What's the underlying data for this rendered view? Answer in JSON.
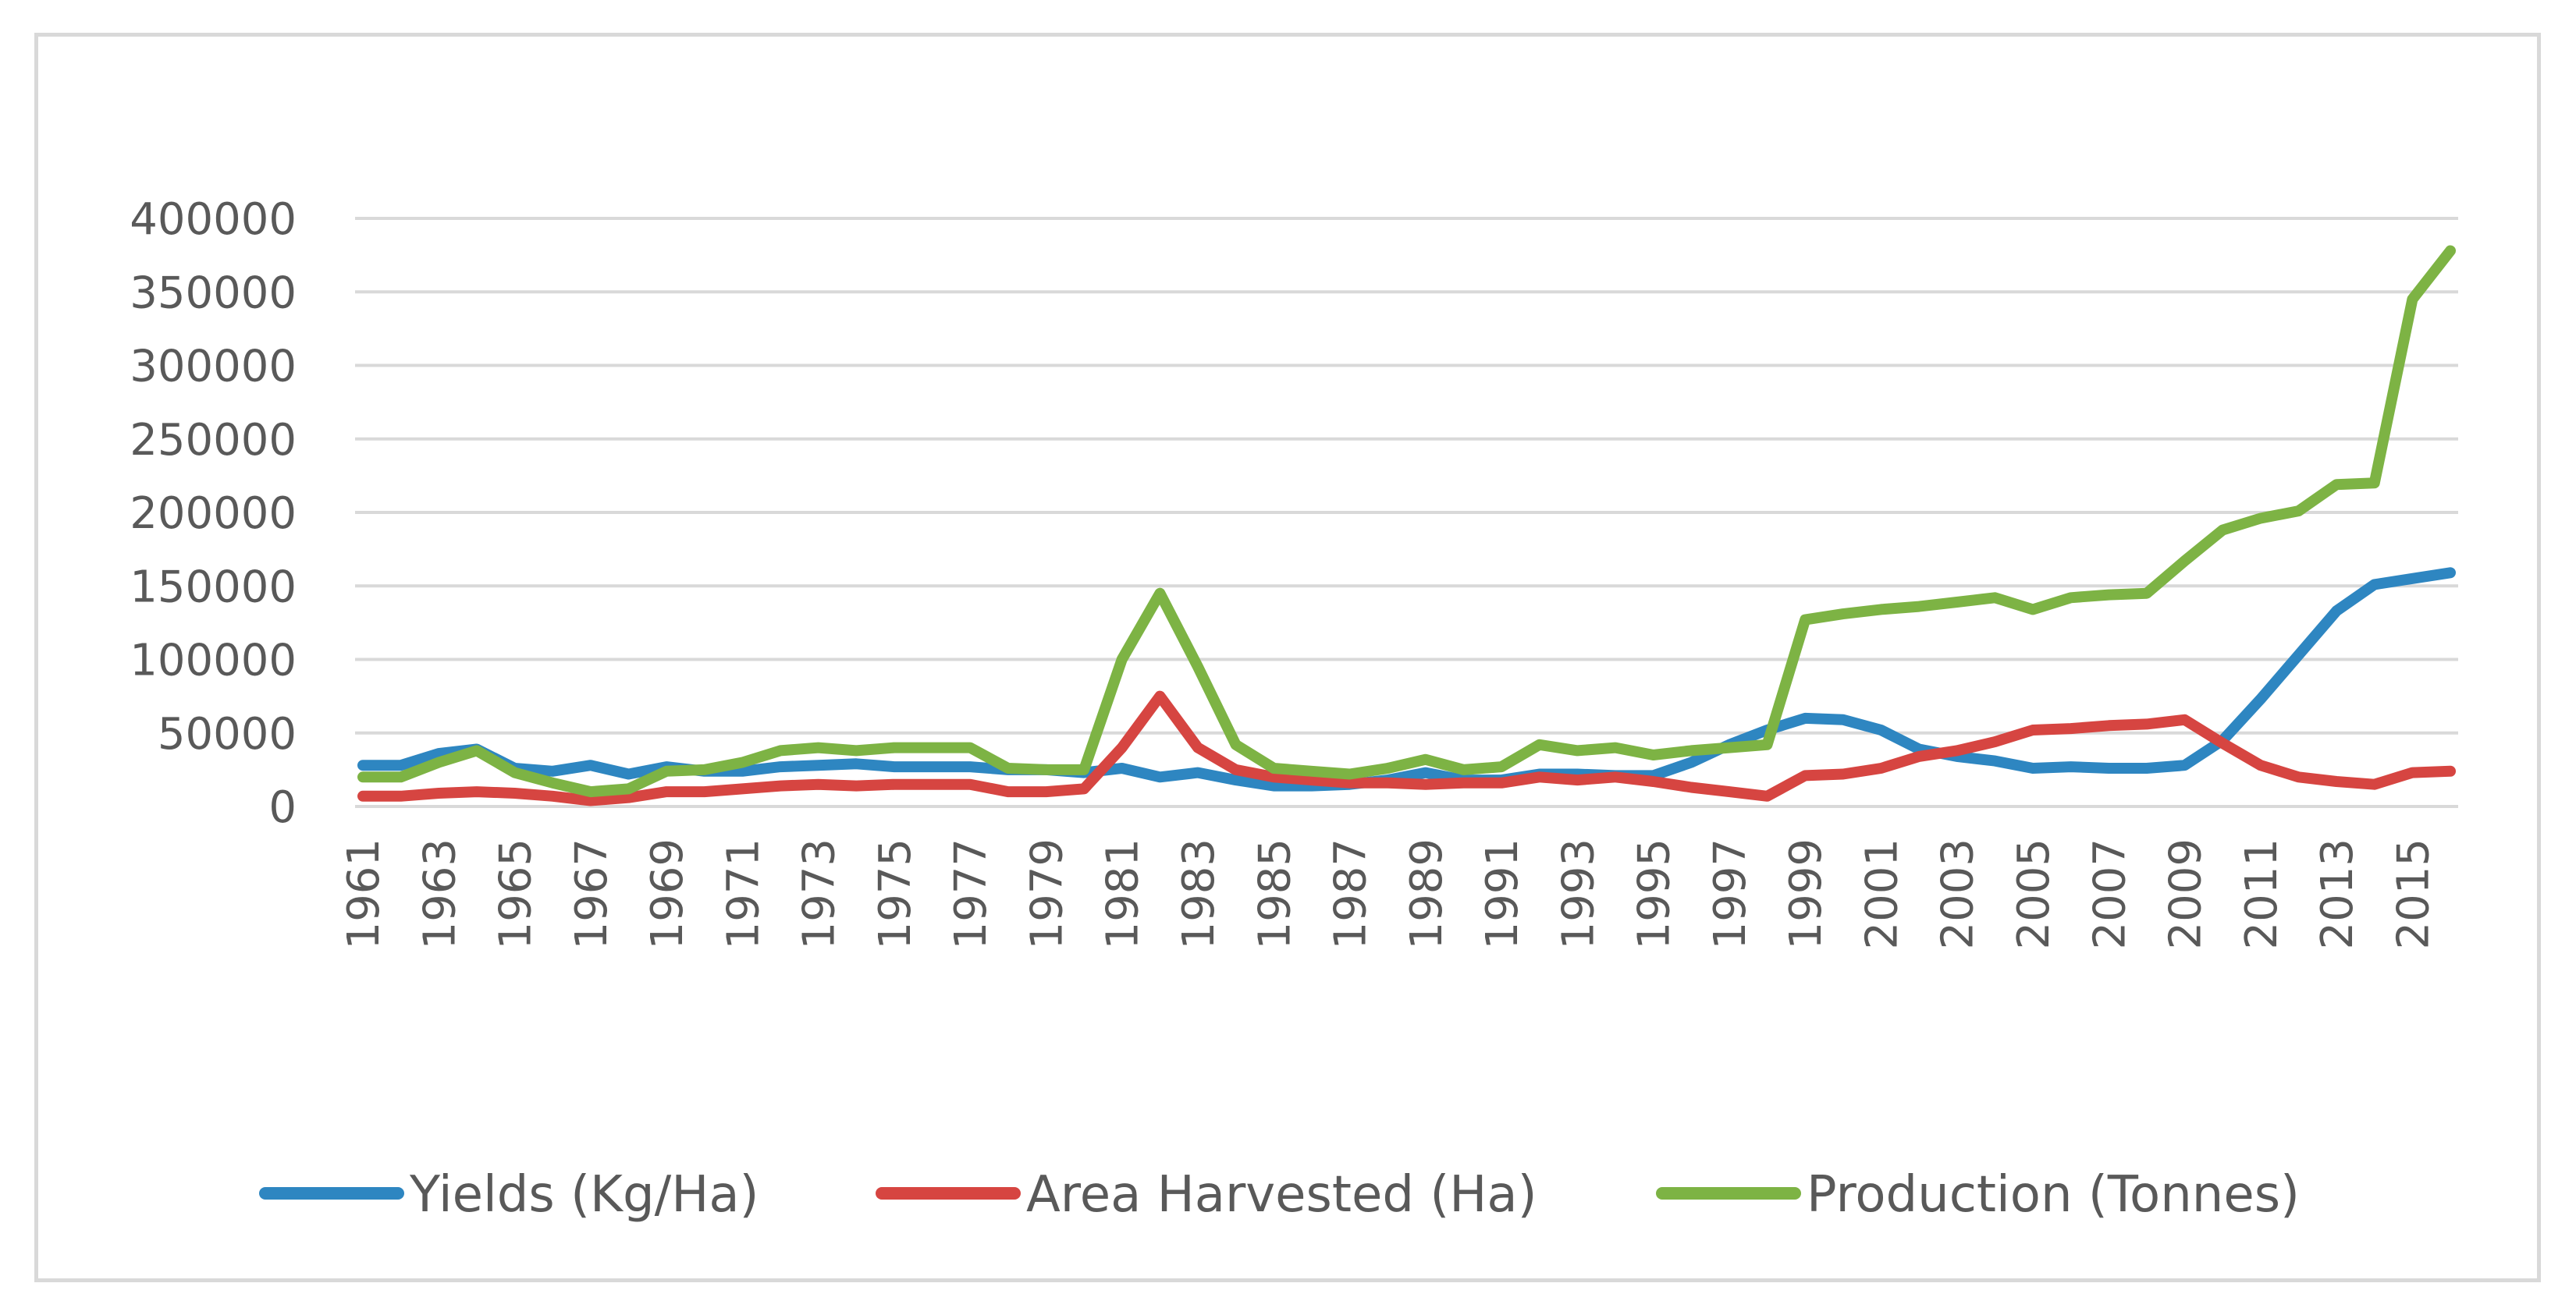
{
  "chart_data": {
    "type": "line",
    "title": "",
    "xlabel": "",
    "ylabel": "",
    "ylim": [
      0,
      400000
    ],
    "yticks": [
      "0",
      "50000",
      "100000",
      "150000",
      "200000",
      "250000",
      "300000",
      "350000",
      "400000"
    ],
    "ytick_values": [
      0,
      50000,
      100000,
      150000,
      200000,
      250000,
      300000,
      350000,
      400000
    ],
    "grid": true,
    "legend_position": "bottom",
    "x": [
      1961,
      1962,
      1963,
      1964,
      1965,
      1966,
      1967,
      1968,
      1969,
      1970,
      1971,
      1972,
      1973,
      1974,
      1975,
      1976,
      1977,
      1978,
      1979,
      1980,
      1981,
      1982,
      1983,
      1984,
      1985,
      1986,
      1987,
      1988,
      1989,
      1990,
      1991,
      1992,
      1993,
      1994,
      1995,
      1996,
      1997,
      1998,
      1999,
      2000,
      2001,
      2002,
      2003,
      2004,
      2005,
      2006,
      2007,
      2008,
      2009,
      2010,
      2011,
      2012,
      2013,
      2014,
      2015,
      2016
    ],
    "xtick_labels": [
      "1961",
      "1963",
      "1965",
      "1967",
      "1969",
      "1971",
      "1973",
      "1975",
      "1977",
      "1979",
      "1981",
      "1983",
      "1985",
      "1987",
      "1989",
      "1991",
      "1993",
      "1995",
      "1997",
      "1999",
      "2001",
      "2003",
      "2005",
      "2007",
      "2009",
      "2011",
      "2013",
      "2015"
    ],
    "series": [
      {
        "name": "Yields (Kg/Ha)",
        "color": "#2e86c1",
        "values": [
          28000,
          28000,
          36000,
          39000,
          26000,
          24000,
          28000,
          22000,
          27000,
          24000,
          24000,
          27000,
          28000,
          29000,
          27000,
          27000,
          27000,
          25000,
          25000,
          23000,
          26000,
          20000,
          23000,
          18000,
          14000,
          14000,
          15000,
          18000,
          23000,
          18000,
          18000,
          22000,
          22000,
          21000,
          21000,
          30000,
          42000,
          52000,
          60000,
          59000,
          52000,
          39000,
          34000,
          31000,
          26000,
          27000,
          26000,
          26000,
          28000,
          45000,
          73000,
          103000,
          133000,
          151000,
          155000,
          159000
        ]
      },
      {
        "name": "Area Harvested (Ha)",
        "color": "#d64541",
        "values": [
          7000,
          7000,
          9000,
          10000,
          9000,
          7000,
          4000,
          6000,
          10000,
          10000,
          12000,
          14000,
          15000,
          14000,
          15000,
          15000,
          15000,
          10000,
          10000,
          12000,
          40000,
          75000,
          40000,
          25000,
          20000,
          18000,
          16000,
          16000,
          15000,
          16000,
          16000,
          20000,
          18000,
          20000,
          17000,
          13000,
          10000,
          7000,
          21000,
          22000,
          26000,
          34000,
          38000,
          44000,
          52000,
          53000,
          55000,
          56000,
          59000,
          43000,
          28000,
          20000,
          17000,
          15000,
          23000,
          24000
        ]
      },
      {
        "name": "Production (Tonnes)",
        "color": "#7db344",
        "values": [
          20000,
          20000,
          30000,
          38000,
          23000,
          16000,
          10000,
          12000,
          24000,
          25000,
          30000,
          38000,
          40000,
          38000,
          40000,
          40000,
          40000,
          26000,
          25000,
          25000,
          100000,
          145000,
          95000,
          42000,
          26000,
          24000,
          22000,
          26000,
          32000,
          25000,
          27000,
          42000,
          38000,
          40000,
          35000,
          38000,
          40000,
          42000,
          127000,
          131000,
          134000,
          136000,
          139000,
          142000,
          134000,
          142000,
          144000,
          145000,
          167000,
          188000,
          196000,
          201000,
          219000,
          220000,
          345000,
          378000
        ]
      }
    ]
  }
}
